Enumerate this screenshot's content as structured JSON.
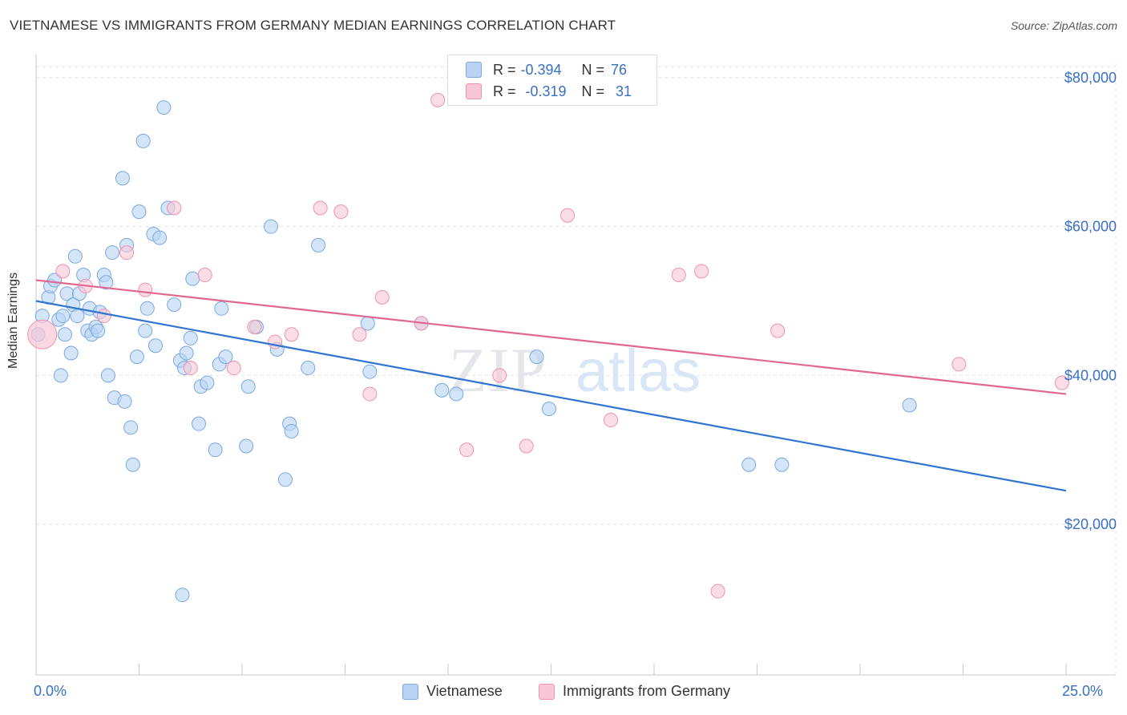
{
  "title": "VIETNAMESE VS IMMIGRANTS FROM GERMANY MEDIAN EARNINGS CORRELATION CHART",
  "source": "Source: ZipAtlas.com",
  "watermark": {
    "zip": "ZIP",
    "atlas": "atlas"
  },
  "legend": {
    "r_label": "R =",
    "n_label": "N =",
    "vietnamese": {
      "r": "-0.394",
      "n": "76"
    },
    "germany": {
      "r": "-0.319",
      "n": "31"
    }
  },
  "colors": {
    "blue_fill": "#b8d3f3",
    "blue_stroke": "#7aa8e0",
    "blue_line": "#2f74d0",
    "pink_fill": "#f8c6d6",
    "pink_stroke": "#ee92b0",
    "pink_line": "#e06890",
    "tick_text": "#3a6fc4"
  },
  "chart_data": {
    "type": "scatter",
    "ylabel": "Median Earnings",
    "xlim": [
      0,
      25
    ],
    "ylim": [
      0,
      82000
    ],
    "x_tick_labels": [
      "0.0%",
      "25.0%"
    ],
    "y_ticks": [
      {
        "value": 20000,
        "label": "$20,000"
      },
      {
        "value": 40000,
        "label": "$40,000"
      },
      {
        "value": 60000,
        "label": "$60,000"
      },
      {
        "value": 80000,
        "label": "$80,000"
      }
    ],
    "grid": true,
    "series": [
      {
        "name": "Vietnamese",
        "color": "blue",
        "trend": {
          "x": [
            0,
            25
          ],
          "y": [
            50000,
            24500
          ]
        },
        "points": [
          [
            0.05,
            45500
          ],
          [
            0.15,
            48000
          ],
          [
            0.3,
            50500
          ],
          [
            0.35,
            52000
          ],
          [
            0.45,
            52800
          ],
          [
            0.55,
            47500
          ],
          [
            0.65,
            48000
          ],
          [
            0.7,
            45500
          ],
          [
            0.75,
            51000
          ],
          [
            0.9,
            49500
          ],
          [
            0.95,
            56000
          ],
          [
            1.0,
            48000
          ],
          [
            1.05,
            51000
          ],
          [
            1.15,
            53500
          ],
          [
            1.25,
            46000
          ],
          [
            1.3,
            49000
          ],
          [
            1.35,
            45500
          ],
          [
            1.45,
            46500
          ],
          [
            1.5,
            46000
          ],
          [
            1.55,
            48500
          ],
          [
            1.65,
            53500
          ],
          [
            1.7,
            52500
          ],
          [
            1.75,
            40000
          ],
          [
            1.85,
            56500
          ],
          [
            1.9,
            37000
          ],
          [
            2.1,
            66500
          ],
          [
            2.15,
            36500
          ],
          [
            2.2,
            57500
          ],
          [
            2.3,
            33000
          ],
          [
            2.35,
            28000
          ],
          [
            2.5,
            62000
          ],
          [
            2.6,
            71500
          ],
          [
            2.65,
            46000
          ],
          [
            2.7,
            49000
          ],
          [
            2.85,
            59000
          ],
          [
            2.9,
            44000
          ],
          [
            3.0,
            58500
          ],
          [
            3.1,
            76000
          ],
          [
            3.2,
            62500
          ],
          [
            3.35,
            49500
          ],
          [
            3.5,
            42000
          ],
          [
            3.6,
            41000
          ],
          [
            3.65,
            43000
          ],
          [
            3.75,
            45000
          ],
          [
            3.8,
            53000
          ],
          [
            3.95,
            33500
          ],
          [
            4.0,
            38500
          ],
          [
            4.15,
            39000
          ],
          [
            4.35,
            30000
          ],
          [
            4.45,
            41500
          ],
          [
            4.5,
            49000
          ],
          [
            4.6,
            42500
          ],
          [
            5.1,
            30500
          ],
          [
            5.15,
            38500
          ],
          [
            5.35,
            46500
          ],
          [
            5.7,
            60000
          ],
          [
            5.85,
            43500
          ],
          [
            6.05,
            26000
          ],
          [
            6.15,
            33500
          ],
          [
            6.2,
            32500
          ],
          [
            6.6,
            41000
          ],
          [
            6.85,
            57500
          ],
          [
            8.05,
            47000
          ],
          [
            8.1,
            40500
          ],
          [
            9.35,
            47000
          ],
          [
            9.85,
            38000
          ],
          [
            10.2,
            37500
          ],
          [
            12.15,
            42500
          ],
          [
            12.45,
            35500
          ],
          [
            17.3,
            28000
          ],
          [
            18.1,
            28000
          ],
          [
            21.2,
            36000
          ],
          [
            2.45,
            42500
          ],
          [
            3.55,
            10500
          ],
          [
            0.85,
            43000
          ],
          [
            0.6,
            40000
          ]
        ]
      },
      {
        "name": "Immigrants from Germany",
        "color": "pink",
        "trend": {
          "x": [
            0,
            25
          ],
          "y": [
            52800,
            37500
          ]
        },
        "points": [
          [
            0.15,
            45500
          ],
          [
            0.65,
            54000
          ],
          [
            1.2,
            52000
          ],
          [
            1.65,
            48000
          ],
          [
            2.2,
            56500
          ],
          [
            2.65,
            51500
          ],
          [
            3.35,
            62500
          ],
          [
            3.75,
            41000
          ],
          [
            4.1,
            53500
          ],
          [
            4.8,
            41000
          ],
          [
            5.3,
            46500
          ],
          [
            5.8,
            44500
          ],
          [
            6.2,
            45500
          ],
          [
            6.9,
            62500
          ],
          [
            7.4,
            62000
          ],
          [
            7.85,
            45500
          ],
          [
            8.1,
            37500
          ],
          [
            8.4,
            50500
          ],
          [
            9.35,
            47000
          ],
          [
            9.75,
            77000
          ],
          [
            10.45,
            30000
          ],
          [
            11.25,
            40000
          ],
          [
            11.9,
            30500
          ],
          [
            12.9,
            61500
          ],
          [
            13.95,
            34000
          ],
          [
            15.6,
            53500
          ],
          [
            16.15,
            54000
          ],
          [
            16.55,
            11000
          ],
          [
            18.0,
            46000
          ],
          [
            22.4,
            41500
          ],
          [
            24.9,
            39000
          ]
        ]
      }
    ]
  },
  "bottom_legend": [
    "Vietnamese",
    "Immigrants from Germany"
  ]
}
